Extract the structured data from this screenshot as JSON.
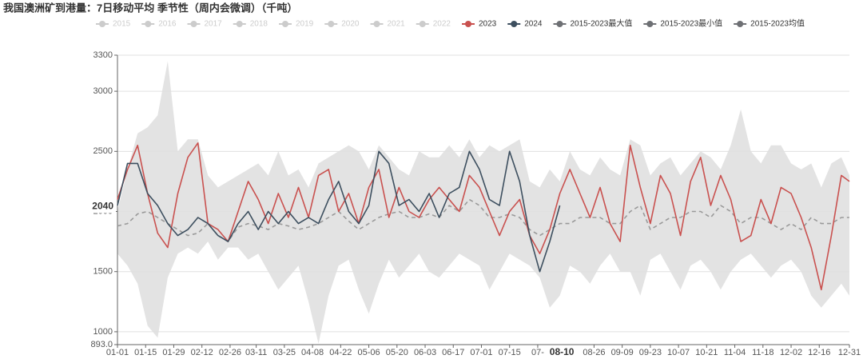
{
  "chart_data": {
    "type": "line",
    "title": "我国澳洲矿到港量：7日移动平均 季节性（周内会微调）（千吨）",
    "legend_inactive": [
      "2015",
      "2016",
      "2017",
      "2018",
      "2019",
      "2020",
      "2021",
      "2022"
    ],
    "x": [
      0,
      5,
      10,
      15,
      20,
      25,
      30,
      35,
      40,
      45,
      50,
      55,
      60,
      65,
      70,
      75,
      80,
      85,
      90,
      95,
      100,
      105,
      110,
      115,
      120,
      125,
      130,
      135,
      140,
      145,
      150,
      155,
      160,
      165,
      170,
      175,
      180,
      185,
      190,
      195,
      200,
      205,
      210,
      215,
      220,
      225,
      230,
      235,
      240,
      245,
      250,
      255,
      260,
      265,
      270,
      275,
      280,
      285,
      290,
      295,
      300,
      305,
      310,
      315,
      320,
      325,
      330,
      335,
      340,
      345,
      350,
      355,
      360,
      364
    ],
    "xlim": [
      0,
      364
    ],
    "xticks": [
      {
        "value": 0,
        "label": "01-01"
      },
      {
        "value": 14,
        "label": "01-15"
      },
      {
        "value": 28,
        "label": "01-29"
      },
      {
        "value": 42,
        "label": "02-12"
      },
      {
        "value": 56,
        "label": "02-26"
      },
      {
        "value": 69,
        "label": "03-11"
      },
      {
        "value": 83,
        "label": "03-25"
      },
      {
        "value": 97,
        "label": "04-08"
      },
      {
        "value": 111,
        "label": "04-22"
      },
      {
        "value": 125,
        "label": "05-06"
      },
      {
        "value": 139,
        "label": "05-20"
      },
      {
        "value": 153,
        "label": "06-03"
      },
      {
        "value": 167,
        "label": "06-17"
      },
      {
        "value": 181,
        "label": "07-01"
      },
      {
        "value": 195,
        "label": "07-15"
      },
      {
        "value": 209,
        "label": "07-"
      },
      {
        "value": 237,
        "label": "08-26"
      },
      {
        "value": 251,
        "label": "09-09"
      },
      {
        "value": 265,
        "label": "09-23"
      },
      {
        "value": 279,
        "label": "10-07"
      },
      {
        "value": 293,
        "label": "10-21"
      },
      {
        "value": 307,
        "label": "11-04"
      },
      {
        "value": 321,
        "label": "11-18"
      },
      {
        "value": 335,
        "label": "12-02"
      },
      {
        "value": 349,
        "label": "12-16"
      },
      {
        "value": 364,
        "label": "12-31"
      }
    ],
    "ylim": [
      893,
      3300
    ],
    "yticks": [
      {
        "value": 893,
        "label": "893.0"
      },
      1000,
      1500,
      2000,
      2500,
      3000,
      3300
    ],
    "grid": true,
    "pointer": {
      "x": 221,
      "x_label": "08-10",
      "y": 2040
    },
    "series": [
      {
        "name": "2015-2023最大值",
        "color": "#6e7074",
        "fill": "#e3e3e3",
        "style": "band-top",
        "values": [
          2000,
          2350,
          2650,
          2700,
          2800,
          3250,
          2500,
          2600,
          2600,
          2300,
          2200,
          2250,
          2300,
          2350,
          2400,
          2300,
          2500,
          2300,
          2350,
          2200,
          2400,
          2450,
          2500,
          2550,
          2500,
          2350,
          2550,
          2450,
          2350,
          2300,
          2500,
          2450,
          2450,
          2550,
          2450,
          2600,
          2450,
          2550,
          2500,
          2550,
          2600,
          2250,
          2200,
          2350,
          2250,
          2500,
          2350,
          2300,
          2450,
          2350,
          2300,
          2600,
          2550,
          2300,
          2400,
          2450,
          2300,
          2400,
          2500,
          2450,
          2350,
          2550,
          2850,
          2500,
          2400,
          2550,
          2550,
          2400,
          2350,
          2400,
          2200,
          2400,
          2450,
          2300
        ]
      },
      {
        "name": "2015-2023最小值",
        "color": "#6e7074",
        "fill": "#ffffff",
        "style": "band-bottom",
        "values": [
          1650,
          1550,
          1400,
          1050,
          950,
          1450,
          1650,
          1700,
          1650,
          1750,
          1600,
          1700,
          1700,
          1600,
          1650,
          1500,
          1350,
          1450,
          1550,
          1250,
          900,
          1300,
          1550,
          1600,
          1350,
          1150,
          1400,
          1600,
          1450,
          1550,
          1650,
          1500,
          1450,
          1550,
          1650,
          1600,
          1550,
          1350,
          1500,
          1650,
          1600,
          1550,
          1450,
          1200,
          1300,
          1550,
          1500,
          1400,
          1550,
          1650,
          1500,
          1500,
          1300,
          1600,
          1650,
          1500,
          1350,
          1550,
          1600,
          1500,
          1350,
          1500,
          1600,
          1650,
          1550,
          1450,
          1550,
          1600,
          1500,
          1300,
          1200,
          1300,
          1400,
          1300
        ]
      },
      {
        "name": "2015-2023均值",
        "color": "#9a9a9a",
        "style": "dashed",
        "values": [
          1880,
          1900,
          1980,
          2000,
          1950,
          1900,
          1850,
          1800,
          1820,
          1900,
          1800,
          1750,
          1870,
          1900,
          1880,
          1850,
          1900,
          1880,
          1850,
          1870,
          1900,
          1950,
          2000,
          1920,
          1850,
          1900,
          1950,
          1980,
          2000,
          1950,
          1950,
          1980,
          1950,
          2050,
          2000,
          2100,
          2050,
          1950,
          1950,
          1980,
          1950,
          1850,
          1800,
          1850,
          1900,
          1900,
          1950,
          1950,
          1950,
          1900,
          1900,
          2000,
          2050,
          1850,
          1900,
          1950,
          1950,
          2000,
          2000,
          1950,
          2050,
          2000,
          1900,
          1950,
          1950,
          1900,
          1850,
          1900,
          1850,
          1950,
          1900,
          1900,
          1950,
          1950
        ]
      },
      {
        "name": "2023",
        "color": "#c9514f",
        "style": "solid",
        "values": [
          2100,
          2350,
          2550,
          2150,
          1820,
          1700,
          2150,
          2450,
          2570,
          1900,
          1850,
          1750,
          2000,
          2250,
          2100,
          1900,
          2150,
          1950,
          2200,
          1950,
          2300,
          2350,
          2000,
          2150,
          1900,
          2200,
          2350,
          1950,
          2200,
          2000,
          1950,
          2100,
          2200,
          2100,
          2000,
          2300,
          2200,
          2000,
          1800,
          2000,
          2100,
          1800,
          1650,
          1850,
          2150,
          2350,
          2150,
          1950,
          2200,
          1900,
          1750,
          2550,
          2200,
          1900,
          2300,
          2150,
          1800,
          2250,
          2450,
          2050,
          2300,
          2100,
          1750,
          1800,
          2100,
          1900,
          2200,
          2150,
          1950,
          1700,
          1350,
          1800,
          2300,
          2250
        ]
      },
      {
        "name": "2024",
        "color": "#3d4f5f",
        "style": "solid",
        "values": [
          2050,
          2400,
          2400,
          2150,
          2050,
          1900,
          1800,
          1850,
          1950,
          1900,
          1800,
          1750,
          1900,
          2000,
          1850,
          2000,
          1900,
          2000,
          1900,
          1950,
          1900,
          2100,
          2250,
          2000,
          1900,
          2050,
          2500,
          2400,
          2050,
          2100,
          2000,
          2150,
          1950,
          2150,
          2200,
          2500,
          2350,
          2100,
          2050,
          2500,
          2250,
          1800,
          1500,
          1750,
          2050,
          null,
          null,
          null,
          null,
          null,
          null,
          null,
          null,
          null,
          null,
          null,
          null,
          null,
          null,
          null,
          null,
          null,
          null,
          null,
          null,
          null,
          null,
          null,
          null,
          null,
          null,
          null,
          null,
          null
        ]
      }
    ]
  }
}
